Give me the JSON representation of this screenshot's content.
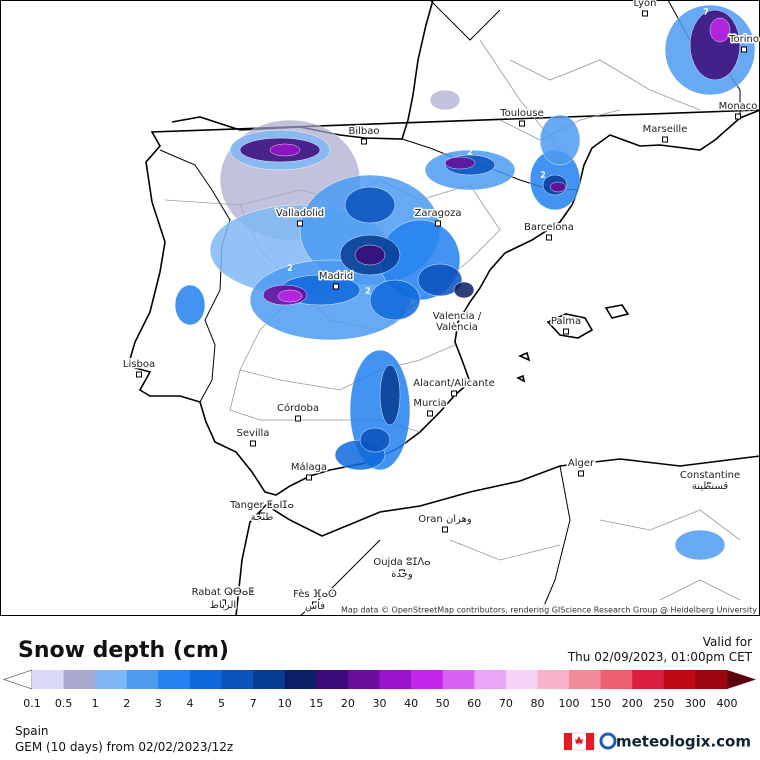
{
  "map": {
    "cities": [
      "Lyon",
      "Torino",
      "Monaco",
      "Toulouse",
      "Marseille",
      "Bilbao",
      "Valladolid",
      "Zaragoza",
      "Barcelona",
      "Madrid",
      "Valencia /",
      "València",
      "Palma",
      "Lisboa",
      "Alacant/Alicante",
      "Murcia",
      "Córdoba",
      "Sevilla",
      "Málaga",
      "Alger",
      "Constantine",
      "قسنطينة",
      "Tanger ⵟⴰⵏⵊⴰ",
      "طنجة",
      "Oran وهران",
      "Oujda ⵓⵊⴷⴰ",
      "وجدة",
      "Rabat ⵕⴱⴰⵟ",
      "الرباط",
      "Fès ⴼⴰⵙ",
      "فاس"
    ],
    "contour_labels": [
      "2",
      "2",
      "2",
      "2",
      "7"
    ],
    "attribution": "Map data © OpenStreetMap contributors, rendering GIScience Research Group @ Heidelberg University"
  },
  "legend": {
    "title": "Snow depth (cm)",
    "levels": [
      0.1,
      0.5,
      1,
      2,
      3,
      4,
      5,
      7,
      10,
      15,
      20,
      30,
      40,
      50,
      60,
      70,
      80,
      100,
      150,
      200,
      250,
      300,
      400
    ],
    "colors": [
      "#d9d9f5",
      "#a9a9cf",
      "#7fb8f5",
      "#4d9cf2",
      "#2382f0",
      "#0f69dc",
      "#0a52bd",
      "#073d95",
      "#0b1e66",
      "#3d0a7a",
      "#6a0d9a",
      "#9a12c9",
      "#c325ea",
      "#da62f2",
      "#eba5f8",
      "#f7d2f6",
      "#f7b3c9",
      "#f28a99",
      "#ee5e70",
      "#dd1f3f",
      "#bf0a14",
      "#9c050e"
    ],
    "under_color": "#ffffff",
    "over_color": "#5c0010"
  },
  "valid": {
    "heading": "Valid for",
    "time": "Thu 02/09/2023, 01:00pm CET"
  },
  "footer": {
    "region": "Spain",
    "model": "GEM (10 days)  from  02/02/2023/12z",
    "brand": "meteologix.com"
  }
}
